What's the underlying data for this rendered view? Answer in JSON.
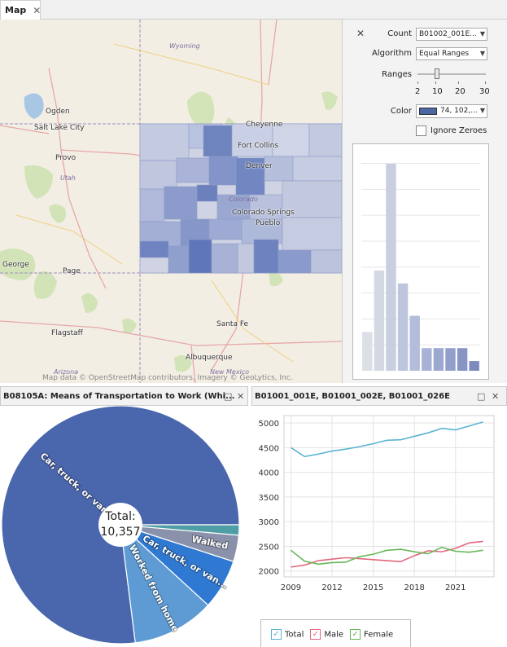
{
  "tab": {
    "label": "Map",
    "close": "✕"
  },
  "map": {
    "states": [
      "Wyoming",
      "Utah",
      "Colorado",
      "Arizona",
      "New Mexico"
    ],
    "cities": [
      "Ogden",
      "Salt Lake City",
      "Provo",
      "Cheyenne",
      "Fort Collins",
      "Denver",
      "Colorado Springs",
      "Pueblo",
      "George",
      "Page",
      "Flagstaff",
      "Santa Fe",
      "Albuquerque"
    ],
    "attribution": "Map data © OpenStreetMap contributors, Imagery © GeoLytics, Inc."
  },
  "panel": {
    "close": "✕",
    "count_label": "Count",
    "count_value": "B01002_001E...",
    "algorithm_label": "Algorithm",
    "algorithm_value": "Equal Ranges",
    "ranges_label": "Ranges",
    "ranges_ticks": [
      "2",
      "10",
      "20",
      "30"
    ],
    "ranges_level": 10,
    "color_label": "Color",
    "color_value": "74, 102,...",
    "color_swatch": "#4a66a5",
    "ignore_zeroes_label": "Ignore Zeroes",
    "ignore_zeroes_checked": false,
    "histogram": [
      12,
      31,
      64,
      27,
      17,
      7,
      7,
      7,
      7,
      3
    ],
    "histogram_colors": [
      "#dcdfe6",
      "#d4d8e3",
      "#c9cfe0",
      "#bec6dd",
      "#b3bcda",
      "#a8b2d6",
      "#9da8d1",
      "#929ecb",
      "#8794c4",
      "#7c8abd"
    ]
  },
  "pie": {
    "title": "B08105A: Means of Transportation to Work (Whi...",
    "center_line1": "Total:",
    "center_line2": "10,357",
    "slice_labels": [
      "Car, truck, or van...",
      "Worked from home",
      "Car, truck, or van...",
      "Walked"
    ],
    "slices": [
      {
        "label": "Car, truck, or van...",
        "value": 77.0,
        "color": "#4a66ac"
      },
      {
        "label": "Worked from home",
        "value": 11.2,
        "color": "#5e9bd4"
      },
      {
        "label": "Car, truck, or van...",
        "value": 6.8,
        "color": "#2f79d2"
      },
      {
        "label": "Walked",
        "value": 3.6,
        "color": "#8a92ab"
      },
      {
        "label": "",
        "value": 1.4,
        "color": "#4f9ea6"
      }
    ]
  },
  "line": {
    "title": "B01001_001E, B01001_002E, B01001_026E",
    "legend": [
      {
        "label": "Total",
        "color": "#5bb3d1"
      },
      {
        "label": "Male",
        "color": "#e2697e"
      },
      {
        "label": "Female",
        "color": "#68b85a"
      }
    ]
  },
  "chart_data": {
    "type": "line",
    "title": "B01001_001E, B01001_002E, B01001_026E",
    "x": [
      2009,
      2010,
      2011,
      2012,
      2013,
      2014,
      2015,
      2016,
      2017,
      2018,
      2019,
      2020,
      2021,
      2022,
      2023
    ],
    "xticks": [
      "2009",
      "2012",
      "2015",
      "2018",
      "2021"
    ],
    "yticks": [
      "2000",
      "2500",
      "3000",
      "3500",
      "4000",
      "4500",
      "5000"
    ],
    "ylim": [
      1880,
      5150
    ],
    "xlim": [
      2008.5,
      2023.8
    ],
    "grid": true,
    "series": [
      {
        "name": "Total",
        "values": [
          4500,
          4320,
          4370,
          4430,
          4470,
          4520,
          4580,
          4650,
          4660,
          4730,
          4800,
          4890,
          4860,
          4940,
          5020
        ]
      },
      {
        "name": "Male",
        "values": [
          2080,
          2120,
          2210,
          2240,
          2270,
          2250,
          2230,
          2210,
          2190,
          2310,
          2410,
          2390,
          2460,
          2570,
          2600
        ]
      },
      {
        "name": "Female",
        "values": [
          2420,
          2200,
          2140,
          2170,
          2180,
          2290,
          2340,
          2420,
          2440,
          2390,
          2350,
          2480,
          2400,
          2380,
          2420
        ]
      }
    ],
    "legend_position": "bottom-left"
  }
}
